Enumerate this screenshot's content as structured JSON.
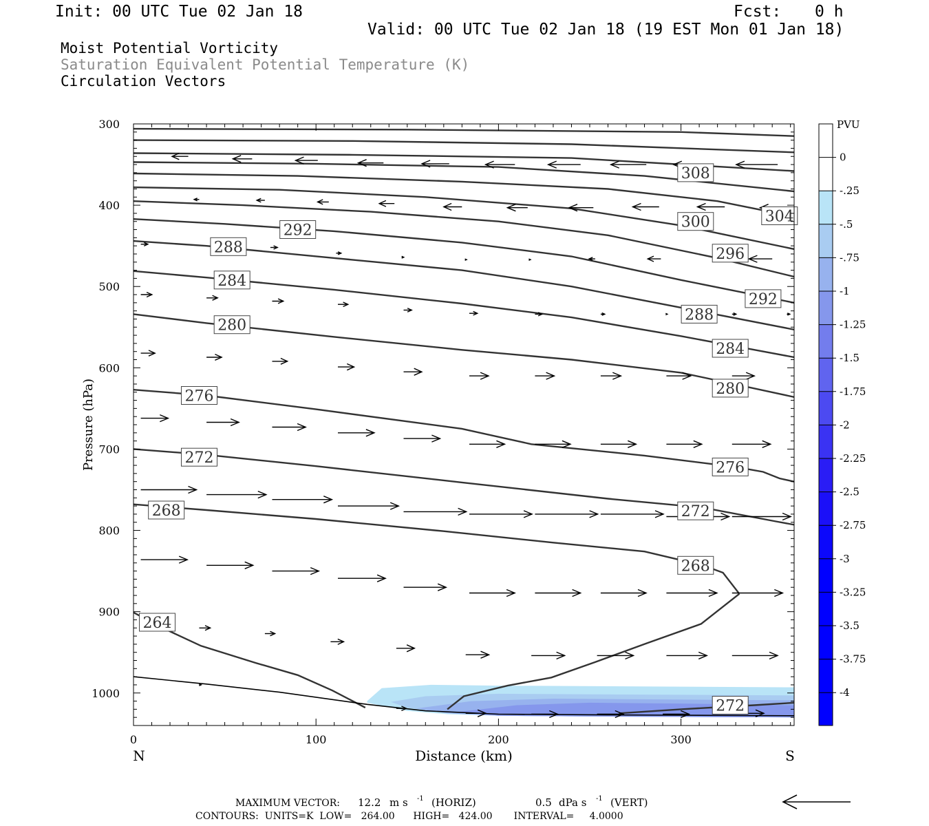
{
  "header": {
    "init": "Init: 00 UTC Tue 02 Jan 18",
    "fcst_label": "Fcst:",
    "fcst_value": "0 h",
    "valid": "Valid: 00 UTC Tue 02 Jan 18 (19 EST Mon 01 Jan 18)"
  },
  "titles": {
    "line1": "Moist Potential Vorticity",
    "line2": "Saturation Equivalent Potential Temperature (K)",
    "line3": "Circulation Vectors"
  },
  "colors": {
    "title2": "#8a8a8a",
    "contour": "#333333",
    "neg_shading": [
      "#b9e4f7",
      "#a9ccf1",
      "#97b2ee",
      "#8597ec",
      "#737ded",
      "#6064ef",
      "#4c4af1",
      "#3a33f3",
      "#2a1df5",
      "#1b10f8",
      "#0c08fb",
      "#0000ff"
    ]
  },
  "footer": {
    "max_vector_label": "MAXIMUM VECTOR:",
    "horiz_value": "12.2",
    "horiz_unit": "m s",
    "horiz_tag": "(HORIZ)",
    "vert_value": "0.5",
    "vert_unit": "dPa s",
    "vert_tag": "(VERT)",
    "exponent": "-1",
    "contours_line": "CONTOURS:  UNITS=K  LOW=   264.00      HIGH=   424.00       INTERVAL=     4.0000"
  },
  "chart_data": {
    "type": "line",
    "xlabel": "Distance (km)",
    "ylabel": "Pressure (hPa)",
    "xlim": [
      0,
      362
    ],
    "ylim": [
      1040,
      300
    ],
    "x_ticks": [
      "0",
      "100",
      "200",
      "300"
    ],
    "y_ticks": [
      "300",
      "400",
      "500",
      "600",
      "700",
      "800",
      "900",
      "1000"
    ],
    "x_end_labels": {
      "left": "N",
      "right": "S"
    },
    "colorbar": {
      "title": "PVU",
      "levels": [
        "0",
        "-.25",
        "-.5",
        "-.75",
        "-1",
        "-1.25",
        "-1.5",
        "-1.75",
        "-2",
        "-2.25",
        "-2.5",
        "-2.75",
        "-3",
        "-3.25",
        "-3.5",
        "-3.75",
        "-4"
      ]
    },
    "theta_e_contours": [
      {
        "level": 264,
        "x": [
          0,
          15,
          37,
          67,
          90,
          109,
          127
        ],
        "p": [
          901,
          919,
          942,
          963,
          978,
          997,
          1018
        ]
      },
      {
        "level": 264,
        "x": [
          172,
          181,
          205,
          229,
          253,
          281,
          311,
          332
        ],
        "p": [
          1020,
          1004,
          991,
          981,
          962,
          939,
          915,
          878
        ]
      },
      {
        "level": 268,
        "x": [
          0,
          40,
          100,
          170,
          230,
          280,
          312,
          323,
          332
        ],
        "p": [
          768,
          775,
          786,
          801,
          815,
          826,
          843,
          852,
          878
        ]
      },
      {
        "level": 272,
        "x": [
          0,
          40,
          100,
          180,
          260,
          312,
          352,
          362
        ],
        "p": [
          700,
          707,
          721,
          741,
          761,
          772,
          789,
          793
        ]
      },
      {
        "level": 276,
        "x": [
          0,
          40,
          100,
          180,
          218,
          280,
          330,
          345,
          354,
          362
        ],
        "p": [
          627,
          634,
          651,
          675,
          694,
          708,
          722,
          728,
          736,
          740
        ]
      },
      {
        "level": 280,
        "x": [
          0,
          40,
          110,
          180,
          240,
          300,
          362
        ],
        "p": [
          534,
          545,
          562,
          578,
          590,
          606,
          636
        ]
      },
      {
        "level": 284,
        "x": [
          0,
          40,
          110,
          180,
          240,
          300,
          362
        ],
        "p": [
          481,
          489,
          504,
          521,
          538,
          561,
          587
        ]
      },
      {
        "level": 288,
        "x": [
          0,
          40,
          110,
          180,
          240,
          300,
          362
        ],
        "p": [
          444,
          450,
          465,
          480,
          500,
          526,
          553
        ]
      },
      {
        "level": 292,
        "x": [
          0,
          50,
          110,
          180,
          240,
          300,
          362
        ],
        "p": [
          417,
          423,
          432,
          446,
          463,
          492,
          520
        ]
      },
      {
        "level": 296,
        "x": [
          0,
          60,
          130,
          200,
          260,
          320,
          362
        ],
        "p": [
          395,
          400,
          408,
          420,
          437,
          465,
          488
        ]
      },
      {
        "level": 300,
        "x": [
          0,
          80,
          160,
          240,
          300,
          362
        ],
        "p": [
          378,
          381,
          390,
          404,
          425,
          454
        ]
      },
      {
        "level": 304,
        "x": [
          0,
          90,
          180,
          260,
          320,
          362
        ],
        "p": [
          361,
          364,
          371,
          380,
          395,
          414
        ]
      },
      {
        "level": 308,
        "x": [
          0,
          100,
          200,
          280,
          362
        ],
        "p": [
          347,
          349,
          353,
          364,
          383
        ]
      },
      {
        "level": 312,
        "x": [
          0,
          120,
          240,
          362
        ],
        "p": [
          336,
          338,
          342,
          358
        ]
      },
      {
        "level": 316,
        "x": [
          0,
          120,
          240,
          362
        ],
        "p": [
          320,
          321,
          325,
          335
        ]
      },
      {
        "level": 320,
        "x": [
          0,
          150,
          300,
          362
        ],
        "p": [
          306,
          307,
          310,
          315
        ]
      },
      {
        "level": 272,
        "x": [
          266,
          300,
          340,
          362
        ],
        "p": [
          1025,
          1020,
          1015,
          1012
        ]
      }
    ],
    "surface": {
      "x": [
        0,
        40,
        80,
        128,
        160,
        200,
        260,
        362
      ],
      "p": [
        980,
        989,
        999,
        1014,
        1022,
        1026,
        1027,
        1028
      ]
    },
    "contour_labels": [
      {
        "text": "308",
        "x": 308,
        "p": 360
      },
      {
        "text": "304",
        "x": 354,
        "p": 413
      },
      {
        "text": "300",
        "x": 308,
        "p": 420
      },
      {
        "text": "296",
        "x": 327,
        "p": 459
      },
      {
        "text": "292",
        "x": 90,
        "p": 430
      },
      {
        "text": "292",
        "x": 345,
        "p": 515
      },
      {
        "text": "288",
        "x": 52,
        "p": 451
      },
      {
        "text": "288",
        "x": 310,
        "p": 534
      },
      {
        "text": "284",
        "x": 54,
        "p": 492
      },
      {
        "text": "284",
        "x": 327,
        "p": 576
      },
      {
        "text": "280",
        "x": 54,
        "p": 547
      },
      {
        "text": "280",
        "x": 327,
        "p": 625
      },
      {
        "text": "276",
        "x": 36,
        "p": 634
      },
      {
        "text": "276",
        "x": 327,
        "p": 722
      },
      {
        "text": "272",
        "x": 36,
        "p": 710
      },
      {
        "text": "272",
        "x": 308,
        "p": 776
      },
      {
        "text": "272",
        "x": 327,
        "p": 1015
      },
      {
        "text": "268",
        "x": 18,
        "p": 775
      },
      {
        "text": "268",
        "x": 308,
        "p": 843
      },
      {
        "text": "264",
        "x": 13,
        "p": 913
      }
    ],
    "pv_regions": [
      {
        "level": "-.25",
        "x": [
          128,
          136,
          163,
          200,
          362,
          362,
          260,
          200,
          172,
          150,
          128
        ],
        "p": [
          1010,
          994,
          990,
          991,
          993,
          1030,
          1029,
          1028,
          1026,
          1022,
          1012
        ]
      },
      {
        "level": "-.5",
        "x": [
          141,
          160,
          200,
          362,
          362,
          260,
          200,
          172,
          150
        ],
        "p": [
          1011,
          1004,
          1001,
          1003,
          1030,
          1029,
          1028,
          1025,
          1018
        ]
      },
      {
        "level": "-.75",
        "x": [
          155,
          185,
          230,
          362,
          362,
          260,
          200,
          172
        ],
        "p": [
          1019,
          1010,
          1007,
          1009,
          1030,
          1029,
          1028,
          1025
        ]
      },
      {
        "level": "-1",
        "x": [
          175,
          210,
          250,
          300,
          362,
          362,
          260,
          200
        ],
        "p": [
          1024,
          1015,
          1012,
          1013,
          1015,
          1030,
          1029,
          1028
        ]
      }
    ],
    "vectors": [
      {
        "x": 30,
        "p": 340,
        "u": -1.6
      },
      {
        "x": 65,
        "p": 343,
        "u": -1.9
      },
      {
        "x": 101,
        "p": 345,
        "u": -2.2
      },
      {
        "x": 137,
        "p": 348,
        "u": -2.5
      },
      {
        "x": 173,
        "p": 349,
        "u": -2.7
      },
      {
        "x": 209,
        "p": 350,
        "u": -2.9
      },
      {
        "x": 245,
        "p": 350,
        "u": -3.2
      },
      {
        "x": 281,
        "p": 350,
        "u": -3.5
      },
      {
        "x": 317,
        "p": 350,
        "u": -3.8
      },
      {
        "x": 353,
        "p": 350,
        "u": -4.1
      },
      {
        "x": 36,
        "p": 393,
        "u": -0.5
      },
      {
        "x": 72,
        "p": 394,
        "u": -0.8
      },
      {
        "x": 107,
        "p": 396,
        "u": -1.1
      },
      {
        "x": 143,
        "p": 398,
        "u": -1.5
      },
      {
        "x": 180,
        "p": 402,
        "u": -1.8
      },
      {
        "x": 216,
        "p": 403,
        "u": -2.0
      },
      {
        "x": 252,
        "p": 403,
        "u": -2.4
      },
      {
        "x": 288,
        "p": 402,
        "u": -2.6
      },
      {
        "x": 324,
        "p": 402,
        "u": -2.7
      },
      {
        "x": 360,
        "p": 403,
        "u": -3.0
      },
      {
        "x": 4,
        "p": 448,
        "u": 0.7
      },
      {
        "x": 75,
        "p": 452,
        "u": 0.7
      },
      {
        "x": 111,
        "p": 459,
        "u": 0.5
      },
      {
        "x": 147,
        "p": 464,
        "u": 0.2
      },
      {
        "x": 182,
        "p": 467,
        "u": 0.1
      },
      {
        "x": 217,
        "p": 467,
        "u": 0.1
      },
      {
        "x": 253,
        "p": 466,
        "u": -0.6
      },
      {
        "x": 289,
        "p": 466,
        "u": -1.3
      },
      {
        "x": 350,
        "p": 466,
        "u": -2.3
      },
      {
        "x": 4,
        "p": 510,
        "u": 1.1
      },
      {
        "x": 40,
        "p": 514,
        "u": 1.1
      },
      {
        "x": 76,
        "p": 518,
        "u": 1.1
      },
      {
        "x": 112,
        "p": 522,
        "u": 1.0
      },
      {
        "x": 148,
        "p": 529,
        "u": 0.8
      },
      {
        "x": 184,
        "p": 533,
        "u": 0.8
      },
      {
        "x": 220,
        "p": 534,
        "u": 0.7
      },
      {
        "x": 256,
        "p": 534,
        "u": 0.4
      },
      {
        "x": 292,
        "p": 534,
        "u": 0.1
      },
      {
        "x": 328,
        "p": 534,
        "u": 0.4
      },
      {
        "x": 358,
        "p": 534,
        "u": 0.3
      },
      {
        "x": 4,
        "p": 582,
        "u": 1.4
      },
      {
        "x": 40,
        "p": 587,
        "u": 1.5
      },
      {
        "x": 76,
        "p": 592,
        "u": 1.5
      },
      {
        "x": 112,
        "p": 599,
        "u": 1.6
      },
      {
        "x": 148,
        "p": 605,
        "u": 1.8
      },
      {
        "x": 184,
        "p": 610,
        "u": 1.9
      },
      {
        "x": 220,
        "p": 610,
        "u": 1.9
      },
      {
        "x": 256,
        "p": 610,
        "u": 2.0
      },
      {
        "x": 292,
        "p": 610,
        "u": 2.4
      },
      {
        "x": 328,
        "p": 610,
        "u": 2.2
      },
      {
        "x": 4,
        "p": 662,
        "u": 2.7
      },
      {
        "x": 40,
        "p": 667,
        "u": 3.2
      },
      {
        "x": 76,
        "p": 673,
        "u": 3.3
      },
      {
        "x": 112,
        "p": 680,
        "u": 3.6
      },
      {
        "x": 148,
        "p": 687,
        "u": 3.6
      },
      {
        "x": 184,
        "p": 694,
        "u": 3.5
      },
      {
        "x": 220,
        "p": 694,
        "u": 3.5
      },
      {
        "x": 256,
        "p": 694,
        "u": 3.5
      },
      {
        "x": 292,
        "p": 694,
        "u": 3.5
      },
      {
        "x": 328,
        "p": 694,
        "u": 3.8
      },
      {
        "x": 4,
        "p": 750,
        "u": 5.5
      },
      {
        "x": 40,
        "p": 756,
        "u": 5.9
      },
      {
        "x": 76,
        "p": 762,
        "u": 5.9
      },
      {
        "x": 112,
        "p": 770,
        "u": 6.0
      },
      {
        "x": 148,
        "p": 777,
        "u": 6.2
      },
      {
        "x": 184,
        "p": 780,
        "u": 6.2
      },
      {
        "x": 220,
        "p": 780,
        "u": 6.2
      },
      {
        "x": 256,
        "p": 780,
        "u": 6.2
      },
      {
        "x": 292,
        "p": 783,
        "u": 6.2
      },
      {
        "x": 328,
        "p": 783,
        "u": 5.8
      },
      {
        "x": 4,
        "p": 836,
        "u": 4.6
      },
      {
        "x": 40,
        "p": 843,
        "u": 4.6
      },
      {
        "x": 76,
        "p": 850,
        "u": 4.6
      },
      {
        "x": 112,
        "p": 859,
        "u": 4.7
      },
      {
        "x": 148,
        "p": 870,
        "u": 4.2
      },
      {
        "x": 184,
        "p": 877,
        "u": 4.5
      },
      {
        "x": 220,
        "p": 877,
        "u": 4.5
      },
      {
        "x": 256,
        "p": 877,
        "u": 4.5
      },
      {
        "x": 292,
        "p": 877,
        "u": 5.0
      },
      {
        "x": 328,
        "p": 877,
        "u": 5.0
      },
      {
        "x": 36,
        "p": 920,
        "u": 1.1
      },
      {
        "x": 72,
        "p": 927,
        "u": 1.0
      },
      {
        "x": 108,
        "p": 937,
        "u": 1.3
      },
      {
        "x": 144,
        "p": 945,
        "u": 1.8
      },
      {
        "x": 182,
        "p": 953,
        "u": 2.3
      },
      {
        "x": 218,
        "p": 954,
        "u": 3.3
      },
      {
        "x": 254,
        "p": 954,
        "u": 3.6
      },
      {
        "x": 292,
        "p": 954,
        "u": 4.0
      },
      {
        "x": 328,
        "p": 954,
        "u": 4.5
      },
      {
        "x": 36,
        "p": 990,
        "u": 0.2
      },
      {
        "x": 144,
        "p": 1019,
        "u": 1.0
      },
      {
        "x": 182,
        "p": 1025,
        "u": 2.0
      },
      {
        "x": 218,
        "p": 1026,
        "u": 2.6
      },
      {
        "x": 254,
        "p": 1026,
        "u": 2.6
      },
      {
        "x": 290,
        "p": 1026,
        "u": 2.6
      },
      {
        "x": 326,
        "p": 1025,
        "u": 3.5
      }
    ]
  }
}
